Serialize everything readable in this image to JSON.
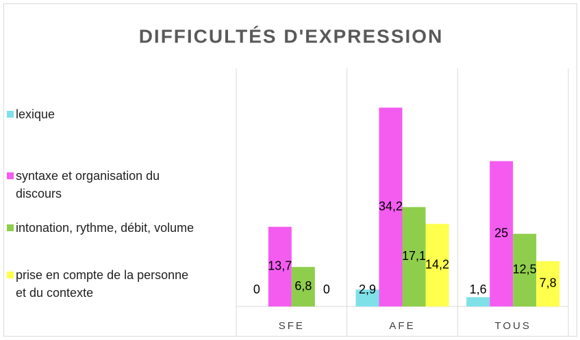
{
  "chart_data": {
    "type": "bar",
    "title": "DIFFICULTÉS D'EXPRESSION",
    "categories": [
      "SFE",
      "AFE",
      "TOUS"
    ],
    "series": [
      {
        "name": "lexique",
        "color": "#7fe0e8",
        "values": [
          0,
          2.9,
          1.6
        ],
        "value_labels": [
          "0",
          "2,9",
          "1,6"
        ]
      },
      {
        "name": "syntaxe et organisation du discours",
        "color": "#f45cf0",
        "values": [
          13.7,
          34.2,
          25
        ],
        "value_labels": [
          "13,7",
          "34,2",
          "25"
        ]
      },
      {
        "name": "intonation, rythme, débit, volume",
        "color": "#8fce4c",
        "values": [
          6.8,
          17.1,
          12.5
        ],
        "value_labels": [
          "6,8",
          "17,1",
          "12,5"
        ]
      },
      {
        "name": "prise en compte de la personne et du contexte",
        "color": "#ffff4d",
        "values": [
          0,
          14.2,
          7.8
        ],
        "value_labels": [
          "0",
          "14,2",
          "7,8"
        ]
      }
    ],
    "ylim": [
      0,
      40
    ],
    "legend": "left"
  }
}
